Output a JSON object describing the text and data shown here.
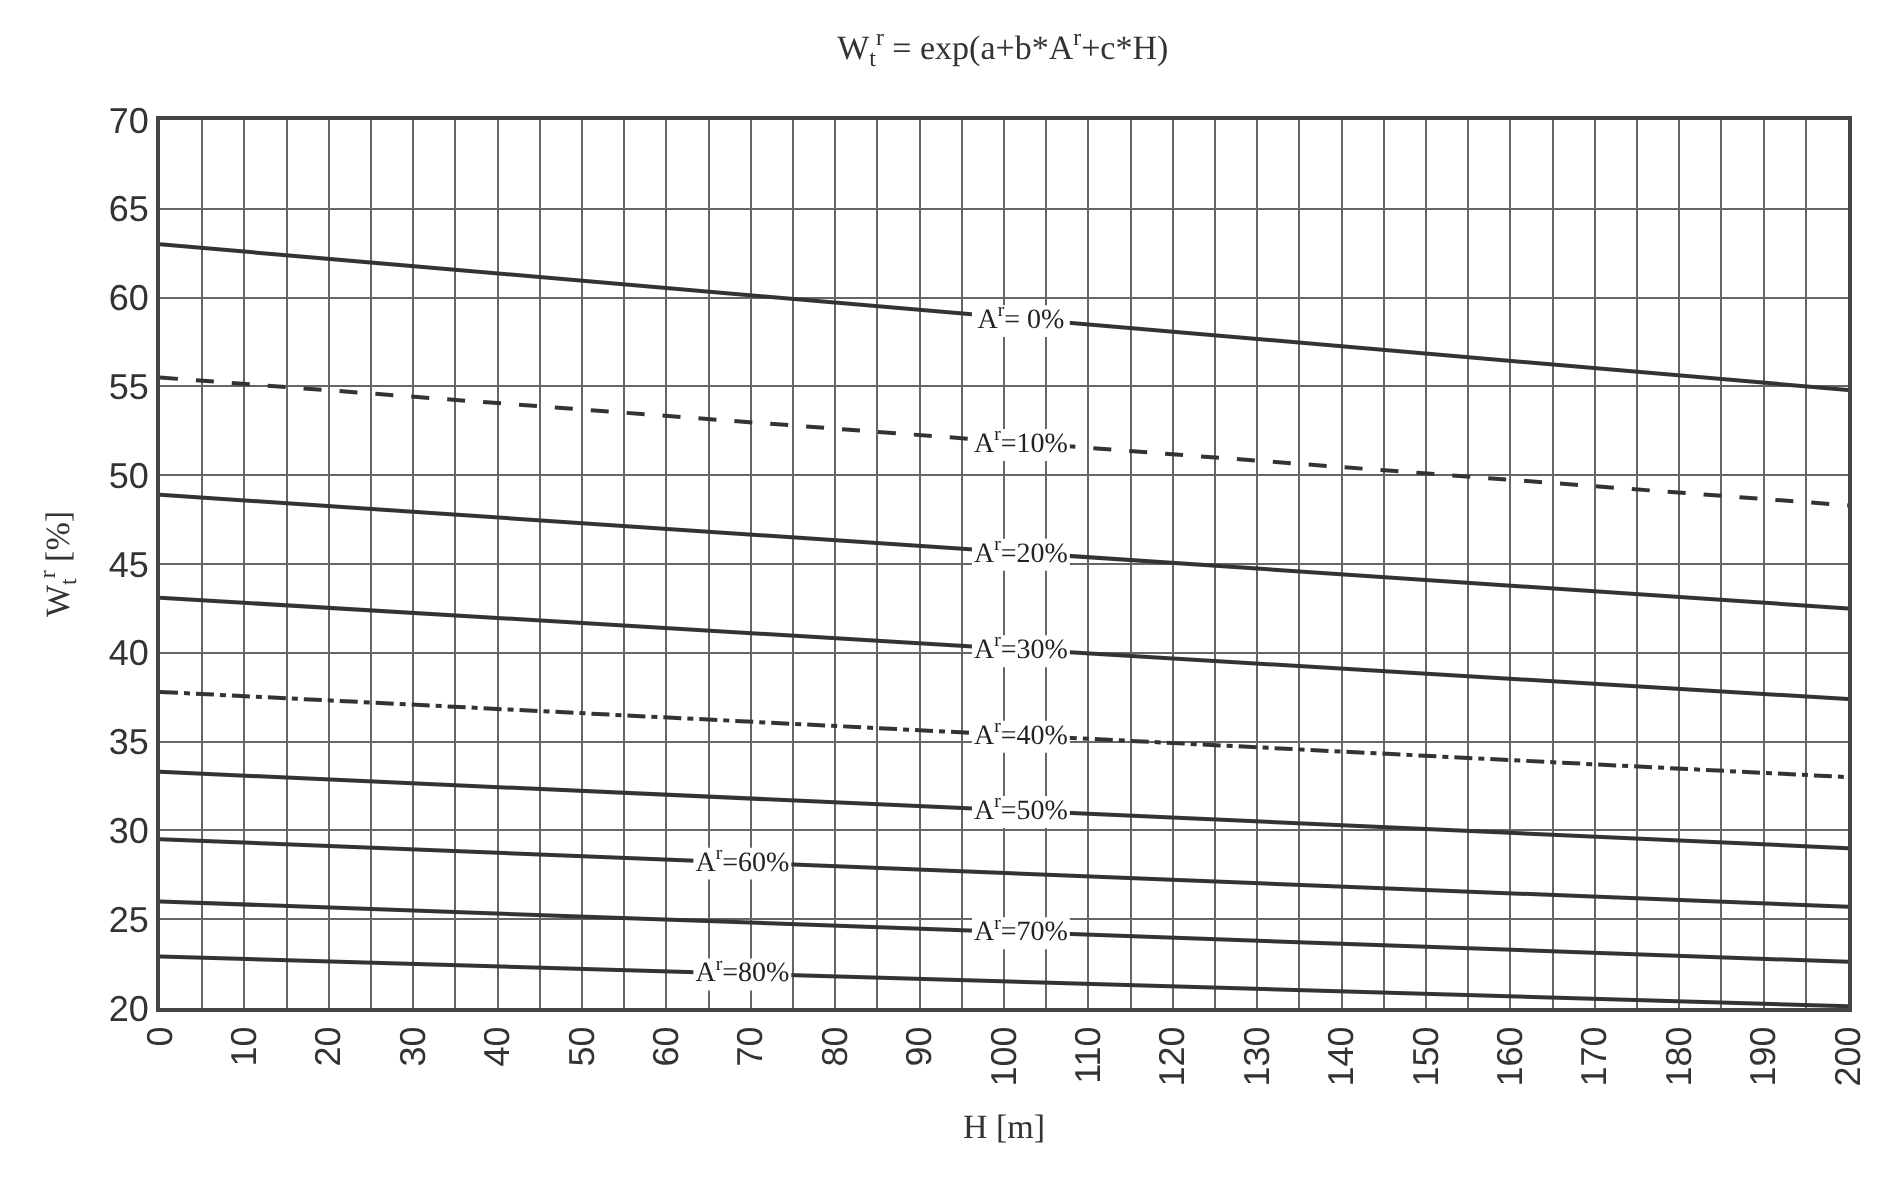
{
  "chart_data": {
    "type": "line",
    "title": "W$_{t}$$^{r}$ = exp(a+b*A$^{r}$+c*H)",
    "xlabel": "H [m]",
    "ylabel": "W$_{t}$$^{r}$ [%]",
    "x": [
      0,
      200
    ],
    "series": [
      {
        "name": "A$^{r}$= 0%",
        "color": "#333333",
        "line_style": "solid",
        "values": [
          63.0,
          54.8
        ]
      },
      {
        "name": "A$^{r}$=10%",
        "color": "#333333",
        "line_style": "dashed",
        "values": [
          55.5,
          48.3
        ]
      },
      {
        "name": "A$^{r}$=20%",
        "color": "#333333",
        "line_style": "solid",
        "values": [
          48.9,
          42.5
        ]
      },
      {
        "name": "A$^{r}$=30%",
        "color": "#333333",
        "line_style": "solid",
        "values": [
          43.1,
          37.4
        ]
      },
      {
        "name": "A$^{r}$=40%",
        "color": "#333333",
        "line_style": "dashdot",
        "values": [
          37.8,
          33.0
        ]
      },
      {
        "name": "A$^{r}$=50%",
        "color": "#333333",
        "line_style": "solid",
        "values": [
          33.3,
          29.0
        ]
      },
      {
        "name": "A$^{r}$=60%",
        "color": "#333333",
        "line_style": "solid",
        "values": [
          29.5,
          25.7
        ]
      },
      {
        "name": "A$^{r}$=70%",
        "color": "#333333",
        "line_style": "solid",
        "values": [
          26.0,
          22.6
        ]
      },
      {
        "name": "A$^{r}$=80%",
        "color": "#333333",
        "line_style": "solid",
        "values": [
          22.9,
          20.1
        ]
      }
    ],
    "xlim": [
      0,
      200
    ],
    "xticks": [
      0,
      10,
      20,
      30,
      40,
      50,
      60,
      70,
      80,
      90,
      100,
      110,
      120,
      130,
      140,
      150,
      160,
      170,
      180,
      190,
      200
    ],
    "ylim": [
      20,
      70
    ],
    "yticks": [
      20,
      25,
      30,
      35,
      40,
      45,
      50,
      55,
      60,
      65,
      70
    ],
    "grid": true,
    "marker": "none"
  }
}
